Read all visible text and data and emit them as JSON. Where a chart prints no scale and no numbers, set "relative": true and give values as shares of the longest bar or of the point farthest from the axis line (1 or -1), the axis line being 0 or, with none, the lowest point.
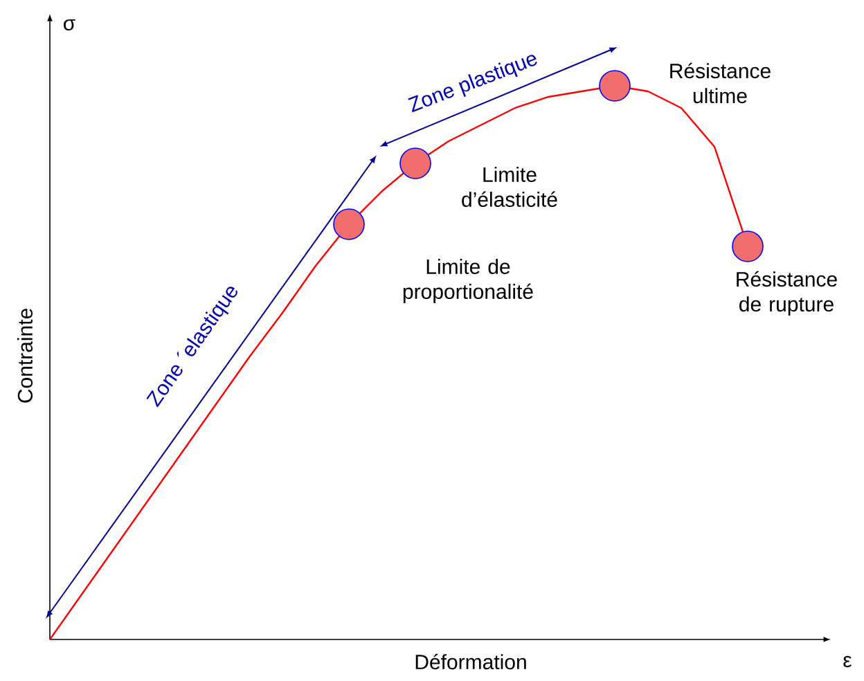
{
  "chart_data": {
    "type": "line",
    "relative": true,
    "xlabel": "Déformation",
    "ylabel": "Contrainte",
    "categories": [
      null,
      null,
      null,
      null,
      null,
      null,
      null,
      null,
      null,
      null,
      null,
      null,
      null,
      null,
      null,
      null,
      null,
      null,
      null,
      null,
      null,
      null
    ],
    "series": [
      {
        "color": "#ff0000",
        "values": [
          0,
          0.085,
          0.17,
          0.255,
          0.34,
          0.425,
          0.51,
          0.59,
          0.675,
          0.75,
          0.81,
          0.86,
          0.9,
          0.93,
          0.96,
          0.98,
          0.99,
          1,
          0.99,
          0.96,
          0.89,
          0.71
        ]
      }
    ],
    "annotations": [
      "Zone ´elastique",
      "Zone plastique",
      "Limite d’élasticité",
      "Limite de proportionalité",
      "Résistance ultime",
      "Résistance de rupture",
      "σ",
      "ε"
    ]
  }
}
